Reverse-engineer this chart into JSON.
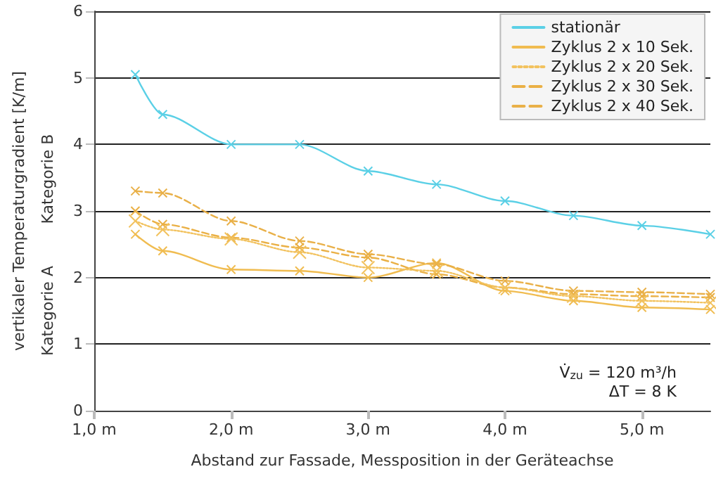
{
  "chart_data": {
    "type": "line",
    "xlabel": "Abstand zur Fassade, Messposition in der Geräteachse",
    "ylabel": "vertikaler Temperaturgradient [K/m]",
    "x": [
      1.3,
      1.5,
      2.0,
      2.5,
      3.0,
      3.5,
      4.0,
      4.5,
      5.0,
      5.5
    ],
    "series": [
      {
        "name": "stationär",
        "color": "#5bd0e6",
        "line_style": "solid",
        "values": [
          5.05,
          4.45,
          4.0,
          4.0,
          3.6,
          3.4,
          3.15,
          2.93,
          2.78,
          2.65
        ]
      },
      {
        "name": "Zyklus 2 x 10 Sek.",
        "color": "#f0bc50",
        "line_style": "solid",
        "values": [
          2.65,
          2.4,
          2.12,
          2.1,
          2.0,
          2.22,
          1.8,
          1.65,
          1.55,
          1.52
        ]
      },
      {
        "name": "Zyklus 2 x 20 Sek.",
        "color": "#f2c25e",
        "line_style": "dotted",
        "values": [
          2.85,
          2.72,
          2.58,
          2.38,
          2.15,
          2.1,
          1.85,
          1.72,
          1.65,
          1.62
        ]
      },
      {
        "name": "Zyklus 2 x 30 Sek.",
        "color": "#eab045",
        "line_style": "dashed",
        "values": [
          3.0,
          2.8,
          2.6,
          2.45,
          2.3,
          2.05,
          1.85,
          1.75,
          1.72,
          1.7
        ]
      },
      {
        "name": "Zyklus 2 x 40 Sek.",
        "color": "#e9b048",
        "line_style": "dashed",
        "values": [
          3.3,
          3.27,
          2.85,
          2.55,
          2.35,
          2.2,
          1.95,
          1.8,
          1.78,
          1.75
        ]
      }
    ],
    "xlim": [
      1.0,
      5.5
    ],
    "xticks": [
      {
        "value": 1,
        "label": "1,0 m"
      },
      {
        "value": 2,
        "label": "2,0 m"
      },
      {
        "value": 3,
        "label": "3,0 m"
      },
      {
        "value": 4,
        "label": "4,0 m"
      },
      {
        "value": 5,
        "label": "5,0 m"
      }
    ],
    "ylim": [
      0,
      6
    ],
    "yticks": [
      0,
      1,
      2,
      3,
      4,
      5,
      6
    ],
    "grid": "y",
    "legend": "top right",
    "marker": "cross",
    "annotations": [
      "Kategorie B",
      "Kategorie A",
      "V̇$_{zu}$ = 120 m³/h",
      "ΔT = 8 K"
    ]
  }
}
